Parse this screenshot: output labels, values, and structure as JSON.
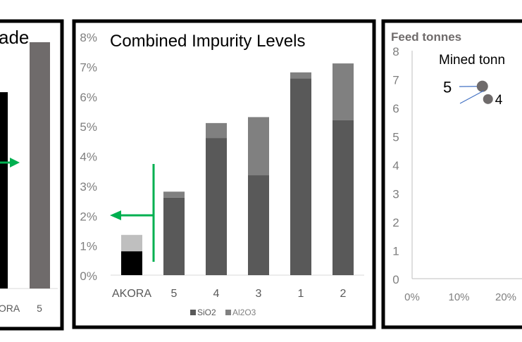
{
  "chart_data": [
    {
      "type": "bar",
      "title": "ade",
      "categories": [
        "ORA",
        "5"
      ],
      "colors": [
        "#000000",
        "#6f6b6b"
      ],
      "annotation": "green arrow pointing right"
    },
    {
      "type": "bar",
      "stacked": true,
      "title": "Combined Impurity Levels",
      "categories": [
        "AKORA",
        "5",
        "4",
        "3",
        "1",
        "2"
      ],
      "series": [
        {
          "name": "SiO2",
          "values": [
            0.8,
            2.6,
            4.6,
            3.35,
            6.6,
            5.2
          ],
          "color": "#595959"
        },
        {
          "name": "Al2O3",
          "values": [
            0.55,
            0.2,
            0.5,
            1.95,
            0.2,
            1.9
          ],
          "color": "#808080"
        }
      ],
      "highlight": {
        "category": "AKORA",
        "colors": [
          "#000000",
          "#bfbfbf"
        ]
      },
      "ylim": [
        0,
        8
      ],
      "yticks": [
        "0%",
        "1%",
        "2%",
        "3%",
        "4%",
        "5%",
        "6%",
        "7%",
        "8%"
      ],
      "legend": "bottom",
      "annotation": "green arrow pointing left",
      "accent": "#00b050"
    },
    {
      "type": "scatter",
      "title": "Feed tonnes",
      "subtitle": "Mined tonn",
      "ylim": [
        0,
        8
      ],
      "yticks": [
        "0",
        "1",
        "2",
        "3",
        "4",
        "5",
        "6",
        "7",
        "8"
      ],
      "xticks": [
        "0%",
        "10%",
        "20%"
      ],
      "points": [
        {
          "label": "5",
          "x": 15,
          "y": 6.75
        },
        {
          "label": "4",
          "x": 16.2,
          "y": 6.3
        }
      ],
      "point_color": "#6f6b6b",
      "leader_color": "#4472c4"
    }
  ]
}
